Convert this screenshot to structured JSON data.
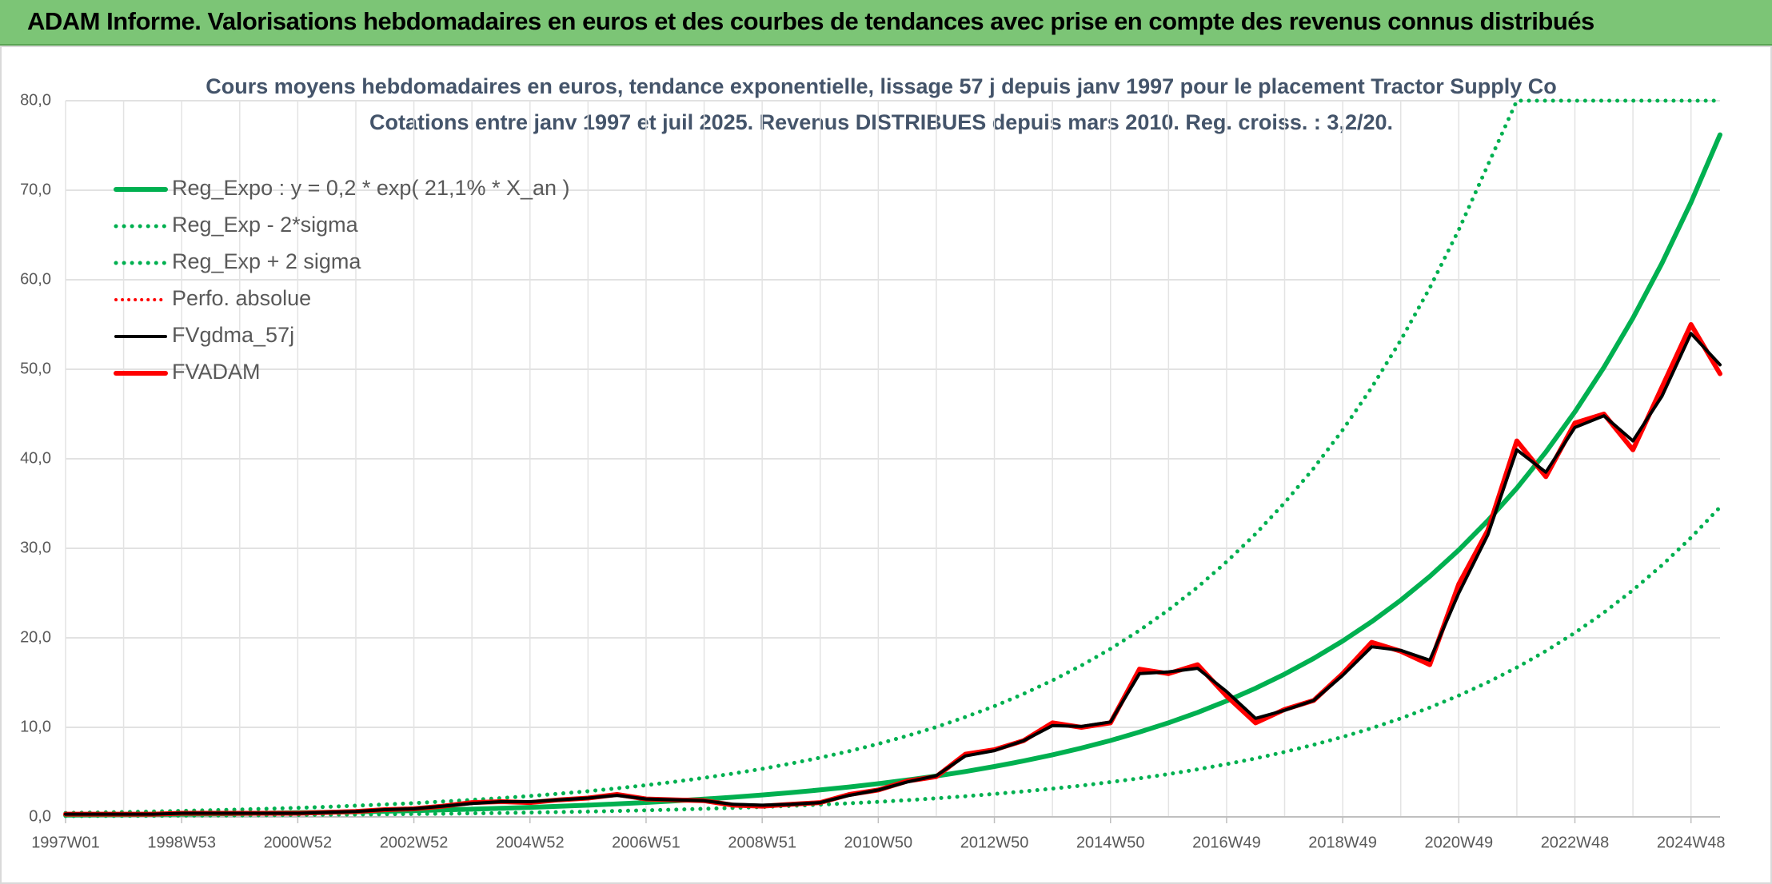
{
  "header": "ADAM Informe. Valorisations hebdomadaires en euros et des courbes de tendances avec prise en compte des revenus connus distribués",
  "chart_data": {
    "type": "line",
    "title": "Cours moyens hebdomadaires en euros, tendance exponentielle, lissage 57 j depuis janv 1997 pour le placement Tractor Supply Co",
    "subtitle": "Cotations entre janv 1997 et juil 2025. Revenus DISTRIBUES depuis mars 2010. Reg. croiss. : 3,2/20.",
    "categories": [
      "1997W01",
      null,
      null,
      null,
      "1998W53",
      null,
      null,
      null,
      "2000W52",
      null,
      null,
      null,
      "2002W52",
      null,
      null,
      null,
      "2004W52",
      null,
      null,
      null,
      "2006W51",
      null,
      null,
      null,
      "2008W51",
      null,
      null,
      null,
      "2010W50",
      null,
      null,
      null,
      "2012W50",
      null,
      null,
      null,
      "2014W50",
      null,
      null,
      null,
      "2016W49",
      null,
      null,
      null,
      "2018W49",
      null,
      null,
      null,
      "2020W49",
      null,
      null,
      null,
      "2022W48",
      null,
      null,
      null,
      "2024W48",
      null
    ],
    "ylim": [
      0,
      80
    ],
    "yticks": [
      {
        "value": 0,
        "label": "0,0"
      },
      {
        "value": 10,
        "label": "10,0"
      },
      {
        "value": 20,
        "label": "20,0"
      },
      {
        "value": 30,
        "label": "30,0"
      },
      {
        "value": 40,
        "label": "40,0"
      },
      {
        "value": 50,
        "label": "50,0"
      },
      {
        "value": 60,
        "label": "60,0"
      },
      {
        "value": 70,
        "label": "70,0"
      },
      {
        "value": 80,
        "label": "80,0"
      }
    ],
    "grid": true,
    "series": [
      {
        "name": "Reg_Expo : y = 0,2 * exp( 21,1% *  X_an )",
        "color": "#00b050",
        "dash": "solid",
        "width": 6,
        "values": [
          0.2,
          0.222,
          0.246,
          0.273,
          0.303,
          0.337,
          0.374,
          0.415,
          0.46,
          0.511,
          0.567,
          0.629,
          0.699,
          0.775,
          0.861,
          0.955,
          1.06,
          1.177,
          1.306,
          1.45,
          1.609,
          1.786,
          1.982,
          2.2,
          2.442,
          2.71,
          3.008,
          3.338,
          3.705,
          4.112,
          4.564,
          5.066,
          5.622,
          6.24,
          6.926,
          7.687,
          8.531,
          9.469,
          10.51,
          11.66,
          12.95,
          14.37,
          15.95,
          17.7,
          19.64,
          21.8,
          24.2,
          26.86,
          29.81,
          33.09,
          36.72,
          40.76,
          45.24,
          50.21,
          55.72,
          61.85,
          68.64,
          76.2
        ]
      },
      {
        "name": "Reg_Exp - 2*sigma",
        "color": "#00b050",
        "dash": "dotted",
        "width": 5,
        "values": [
          0.09,
          0.1,
          0.11,
          0.12,
          0.14,
          0.15,
          0.17,
          0.19,
          0.21,
          0.23,
          0.26,
          0.29,
          0.32,
          0.35,
          0.39,
          0.43,
          0.48,
          0.54,
          0.59,
          0.66,
          0.73,
          0.81,
          0.9,
          1.0,
          1.11,
          1.23,
          1.37,
          1.52,
          1.68,
          1.87,
          2.07,
          2.3,
          2.56,
          2.84,
          3.15,
          3.49,
          3.88,
          4.3,
          4.78,
          5.3,
          5.89,
          6.53,
          7.25,
          8.05,
          8.93,
          9.91,
          11.0,
          12.21,
          13.55,
          15.04,
          16.69,
          18.53,
          20.56,
          22.82,
          25.33,
          28.11,
          31.2,
          34.6
        ]
      },
      {
        "name": "Reg_Exp + 2 sigma",
        "color": "#00b050",
        "dash": "dotted",
        "width": 5,
        "values": [
          0.44,
          0.49,
          0.54,
          0.6,
          0.67,
          0.74,
          0.82,
          0.91,
          1.01,
          1.12,
          1.25,
          1.38,
          1.54,
          1.71,
          1.89,
          2.1,
          2.33,
          2.59,
          2.87,
          3.19,
          3.54,
          3.93,
          4.36,
          4.84,
          5.37,
          5.96,
          6.62,
          7.34,
          8.15,
          9.05,
          10.04,
          11.15,
          12.37,
          13.73,
          15.24,
          16.91,
          18.77,
          20.83,
          23.12,
          25.65,
          28.49,
          31.61,
          35.09,
          38.94,
          43.21,
          47.96,
          53.24,
          59.09,
          65.58,
          72.8,
          80,
          80,
          80,
          80,
          80,
          80,
          80,
          80
        ]
      },
      {
        "name": "Perfo. absolue",
        "color": "#ff0000",
        "dash": "dotted",
        "width": 4,
        "values": [
          0.3,
          0.3,
          0.3,
          0.3,
          0.4,
          0.4,
          0.4,
          0.4,
          0.4,
          0.5,
          0.6,
          0.8,
          0.9,
          1.2,
          1.6,
          1.7,
          1.6,
          1.9,
          2.1,
          2.5,
          2.0,
          1.9,
          1.8,
          1.3,
          1.2,
          1.4,
          1.6,
          2.5,
          3.0,
          4.0,
          4.5,
          7.0,
          7.5,
          8.5,
          10.5,
          10.0,
          10.5,
          16.5,
          16.0,
          17.0,
          13.5,
          10.5,
          12.0,
          13.0,
          16.0,
          19.5,
          18.5,
          17.0,
          26.0,
          32.0,
          42.0,
          38.0,
          44.0,
          45.0,
          41.0,
          48.0,
          55.0,
          49.5
        ]
      },
      {
        "name": "FVgdma_57j",
        "color": "#000000",
        "dash": "solid",
        "width": 4,
        "values": [
          0.3,
          0.3,
          0.3,
          0.3,
          0.4,
          0.4,
          0.4,
          0.4,
          0.4,
          0.5,
          0.6,
          0.8,
          0.9,
          1.2,
          1.5,
          1.7,
          1.7,
          1.9,
          2.1,
          2.4,
          2.0,
          1.9,
          1.8,
          1.4,
          1.3,
          1.4,
          1.6,
          2.4,
          3.0,
          3.9,
          4.6,
          6.8,
          7.4,
          8.5,
          10.2,
          10.1,
          10.6,
          16.0,
          16.2,
          16.6,
          14.0,
          11.0,
          11.9,
          13.0,
          15.8,
          19.0,
          18.6,
          17.5,
          25.0,
          31.5,
          41.0,
          38.5,
          43.5,
          44.8,
          42.0,
          47.0,
          54.0,
          50.5
        ]
      },
      {
        "name": "FVADAM",
        "color": "#ff0000",
        "dash": "solid",
        "width": 6,
        "values": [
          0.3,
          0.3,
          0.3,
          0.3,
          0.4,
          0.4,
          0.4,
          0.4,
          0.4,
          0.5,
          0.6,
          0.8,
          0.9,
          1.2,
          1.6,
          1.7,
          1.6,
          1.9,
          2.1,
          2.5,
          2.0,
          1.9,
          1.8,
          1.3,
          1.2,
          1.4,
          1.6,
          2.5,
          3.0,
          4.0,
          4.5,
          7.0,
          7.5,
          8.5,
          10.5,
          10.0,
          10.5,
          16.5,
          16.0,
          17.0,
          13.5,
          10.5,
          12.0,
          13.0,
          16.0,
          19.5,
          18.5,
          17.0,
          26.0,
          32.0,
          42.0,
          38.0,
          44.0,
          45.0,
          41.0,
          48.0,
          55.0,
          49.5
        ]
      }
    ]
  }
}
